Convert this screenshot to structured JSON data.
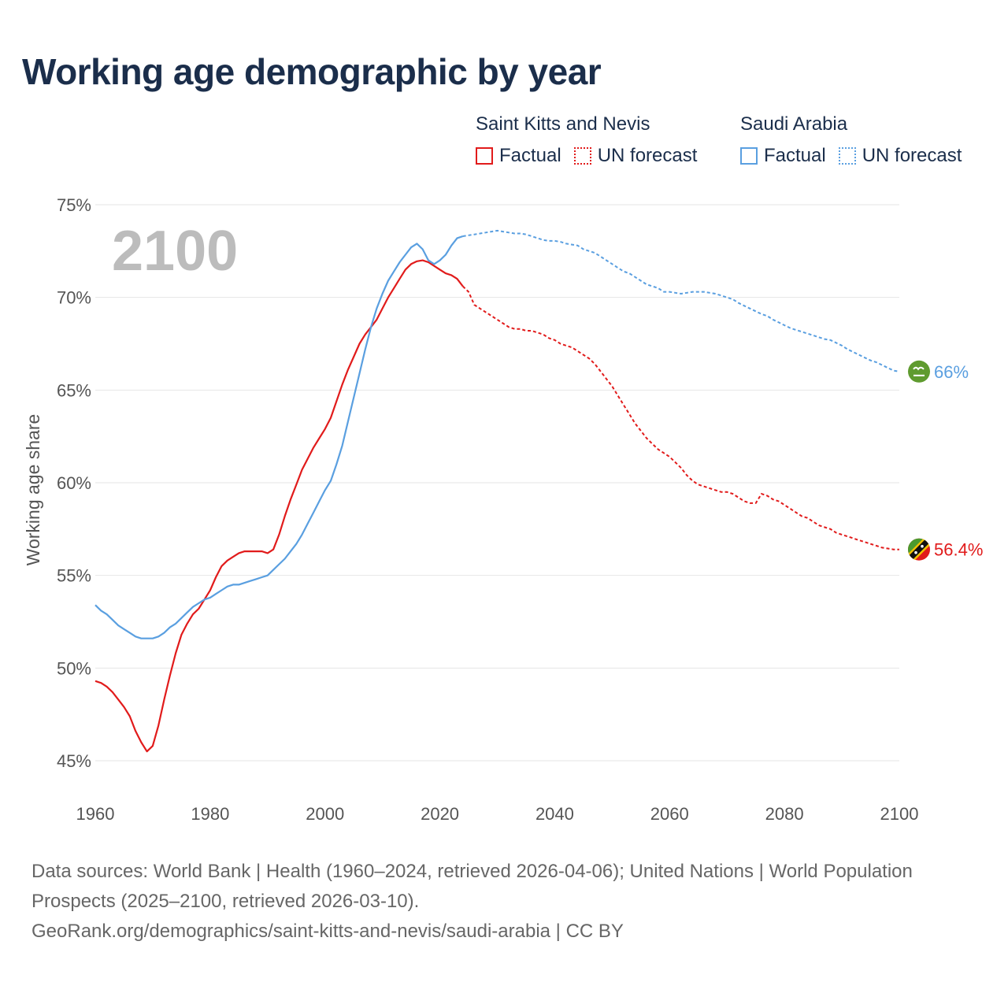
{
  "chart_data": {
    "type": "line",
    "title": "Working age demographic by year",
    "year_watermark": "2100",
    "ylabel": "Working age share",
    "xlabel": "",
    "xlim": [
      1960,
      2100
    ],
    "ylim": [
      45,
      75
    ],
    "x_ticks": [
      1960,
      1980,
      2000,
      2020,
      2040,
      2060,
      2080,
      2100
    ],
    "y_ticks": [
      45,
      50,
      55,
      60,
      65,
      70,
      75
    ],
    "y_tick_suffix": "%",
    "forecast_start": 2024,
    "series": [
      {
        "name": "Saint Kitts and Nevis",
        "color": "#e11b1b",
        "end_label": "56.4%",
        "flag_icon": "saint-kitts-and-nevis-flag-icon",
        "points": [
          [
            1960,
            49.3
          ],
          [
            1961,
            49.2
          ],
          [
            1962,
            49.0
          ],
          [
            1963,
            48.7
          ],
          [
            1964,
            48.3
          ],
          [
            1965,
            47.9
          ],
          [
            1966,
            47.4
          ],
          [
            1967,
            46.6
          ],
          [
            1968,
            46.0
          ],
          [
            1969,
            45.5
          ],
          [
            1970,
            45.8
          ],
          [
            1971,
            46.9
          ],
          [
            1972,
            48.3
          ],
          [
            1973,
            49.6
          ],
          [
            1974,
            50.8
          ],
          [
            1975,
            51.8
          ],
          [
            1976,
            52.4
          ],
          [
            1977,
            52.9
          ],
          [
            1978,
            53.2
          ],
          [
            1979,
            53.7
          ],
          [
            1980,
            54.2
          ],
          [
            1981,
            54.9
          ],
          [
            1982,
            55.5
          ],
          [
            1983,
            55.8
          ],
          [
            1984,
            56.0
          ],
          [
            1985,
            56.2
          ],
          [
            1986,
            56.3
          ],
          [
            1987,
            56.3
          ],
          [
            1988,
            56.3
          ],
          [
            1989,
            56.3
          ],
          [
            1990,
            56.2
          ],
          [
            1991,
            56.4
          ],
          [
            1992,
            57.2
          ],
          [
            1993,
            58.2
          ],
          [
            1994,
            59.1
          ],
          [
            1995,
            59.9
          ],
          [
            1996,
            60.7
          ],
          [
            1997,
            61.3
          ],
          [
            1998,
            61.9
          ],
          [
            1999,
            62.4
          ],
          [
            2000,
            62.9
          ],
          [
            2001,
            63.5
          ],
          [
            2002,
            64.4
          ],
          [
            2003,
            65.3
          ],
          [
            2004,
            66.1
          ],
          [
            2005,
            66.8
          ],
          [
            2006,
            67.5
          ],
          [
            2007,
            68.0
          ],
          [
            2008,
            68.4
          ],
          [
            2009,
            68.8
          ],
          [
            2010,
            69.4
          ],
          [
            2011,
            70.0
          ],
          [
            2012,
            70.5
          ],
          [
            2013,
            71.0
          ],
          [
            2014,
            71.5
          ],
          [
            2015,
            71.8
          ],
          [
            2016,
            71.95
          ],
          [
            2017,
            72.0
          ],
          [
            2018,
            71.9
          ],
          [
            2019,
            71.7
          ],
          [
            2020,
            71.5
          ],
          [
            2021,
            71.3
          ],
          [
            2022,
            71.2
          ],
          [
            2023,
            71.0
          ],
          [
            2024,
            70.6
          ],
          [
            2025,
            70.3
          ],
          [
            2026,
            69.6
          ],
          [
            2027,
            69.4
          ],
          [
            2028,
            69.2
          ],
          [
            2029,
            69.0
          ],
          [
            2030,
            68.8
          ],
          [
            2031,
            68.6
          ],
          [
            2032,
            68.4
          ],
          [
            2033,
            68.3
          ],
          [
            2034,
            68.3
          ],
          [
            2035,
            68.2
          ],
          [
            2036,
            68.2
          ],
          [
            2037,
            68.1
          ],
          [
            2038,
            68.0
          ],
          [
            2039,
            67.8
          ],
          [
            2040,
            67.7
          ],
          [
            2041,
            67.5
          ],
          [
            2042,
            67.4
          ],
          [
            2043,
            67.3
          ],
          [
            2044,
            67.1
          ],
          [
            2045,
            66.9
          ],
          [
            2046,
            66.7
          ],
          [
            2047,
            66.4
          ],
          [
            2048,
            66.0
          ],
          [
            2049,
            65.6
          ],
          [
            2050,
            65.2
          ],
          [
            2051,
            64.7
          ],
          [
            2052,
            64.2
          ],
          [
            2053,
            63.7
          ],
          [
            2054,
            63.2
          ],
          [
            2055,
            62.8
          ],
          [
            2056,
            62.4
          ],
          [
            2057,
            62.1
          ],
          [
            2058,
            61.8
          ],
          [
            2059,
            61.6
          ],
          [
            2060,
            61.4
          ],
          [
            2061,
            61.1
          ],
          [
            2062,
            60.8
          ],
          [
            2063,
            60.4
          ],
          [
            2064,
            60.1
          ],
          [
            2065,
            59.9
          ],
          [
            2066,
            59.8
          ],
          [
            2067,
            59.7
          ],
          [
            2068,
            59.6
          ],
          [
            2069,
            59.5
          ],
          [
            2070,
            59.5
          ],
          [
            2071,
            59.4
          ],
          [
            2072,
            59.2
          ],
          [
            2073,
            59.0
          ],
          [
            2074,
            58.9
          ],
          [
            2075,
            58.9
          ],
          [
            2076,
            59.4
          ],
          [
            2077,
            59.3
          ],
          [
            2078,
            59.1
          ],
          [
            2079,
            59.0
          ],
          [
            2080,
            58.8
          ],
          [
            2081,
            58.6
          ],
          [
            2082,
            58.4
          ],
          [
            2083,
            58.2
          ],
          [
            2084,
            58.1
          ],
          [
            2085,
            57.9
          ],
          [
            2086,
            57.7
          ],
          [
            2087,
            57.6
          ],
          [
            2088,
            57.5
          ],
          [
            2089,
            57.3
          ],
          [
            2090,
            57.2
          ],
          [
            2091,
            57.1
          ],
          [
            2092,
            57.0
          ],
          [
            2093,
            56.9
          ],
          [
            2094,
            56.8
          ],
          [
            2095,
            56.7
          ],
          [
            2096,
            56.6
          ],
          [
            2097,
            56.5
          ],
          [
            2098,
            56.45
          ],
          [
            2099,
            56.4
          ],
          [
            2100,
            56.4
          ]
        ]
      },
      {
        "name": "Saudi Arabia",
        "color": "#5a9fe0",
        "end_label": "66%",
        "flag_icon": "saudi-arabia-flag-icon",
        "points": [
          [
            1960,
            53.4
          ],
          [
            1961,
            53.1
          ],
          [
            1962,
            52.9
          ],
          [
            1963,
            52.6
          ],
          [
            1964,
            52.3
          ],
          [
            1965,
            52.1
          ],
          [
            1966,
            51.9
          ],
          [
            1967,
            51.7
          ],
          [
            1968,
            51.6
          ],
          [
            1969,
            51.6
          ],
          [
            1970,
            51.6
          ],
          [
            1971,
            51.7
          ],
          [
            1972,
            51.9
          ],
          [
            1973,
            52.2
          ],
          [
            1974,
            52.4
          ],
          [
            1975,
            52.7
          ],
          [
            1976,
            53.0
          ],
          [
            1977,
            53.3
          ],
          [
            1978,
            53.5
          ],
          [
            1979,
            53.7
          ],
          [
            1980,
            53.8
          ],
          [
            1981,
            54.0
          ],
          [
            1982,
            54.2
          ],
          [
            1983,
            54.4
          ],
          [
            1984,
            54.5
          ],
          [
            1985,
            54.5
          ],
          [
            1986,
            54.6
          ],
          [
            1987,
            54.7
          ],
          [
            1988,
            54.8
          ],
          [
            1989,
            54.9
          ],
          [
            1990,
            55.0
          ],
          [
            1991,
            55.3
          ],
          [
            1992,
            55.6
          ],
          [
            1993,
            55.9
          ],
          [
            1994,
            56.3
          ],
          [
            1995,
            56.7
          ],
          [
            1996,
            57.2
          ],
          [
            1997,
            57.8
          ],
          [
            1998,
            58.4
          ],
          [
            1999,
            59.0
          ],
          [
            2000,
            59.6
          ],
          [
            2001,
            60.1
          ],
          [
            2002,
            61.0
          ],
          [
            2003,
            62.0
          ],
          [
            2004,
            63.3
          ],
          [
            2005,
            64.6
          ],
          [
            2006,
            65.9
          ],
          [
            2007,
            67.2
          ],
          [
            2008,
            68.4
          ],
          [
            2009,
            69.4
          ],
          [
            2010,
            70.2
          ],
          [
            2011,
            70.9
          ],
          [
            2012,
            71.4
          ],
          [
            2013,
            71.9
          ],
          [
            2014,
            72.3
          ],
          [
            2015,
            72.7
          ],
          [
            2016,
            72.9
          ],
          [
            2017,
            72.6
          ],
          [
            2018,
            72.0
          ],
          [
            2019,
            71.8
          ],
          [
            2020,
            72.0
          ],
          [
            2021,
            72.3
          ],
          [
            2022,
            72.8
          ],
          [
            2023,
            73.2
          ],
          [
            2024,
            73.3
          ],
          [
            2025,
            73.35
          ],
          [
            2026,
            73.4
          ],
          [
            2027,
            73.45
          ],
          [
            2028,
            73.5
          ],
          [
            2029,
            73.55
          ],
          [
            2030,
            73.6
          ],
          [
            2031,
            73.55
          ],
          [
            2032,
            73.5
          ],
          [
            2033,
            73.45
          ],
          [
            2034,
            73.45
          ],
          [
            2035,
            73.4
          ],
          [
            2036,
            73.3
          ],
          [
            2037,
            73.2
          ],
          [
            2038,
            73.1
          ],
          [
            2039,
            73.05
          ],
          [
            2040,
            73.05
          ],
          [
            2041,
            73.0
          ],
          [
            2042,
            72.9
          ],
          [
            2043,
            72.85
          ],
          [
            2044,
            72.8
          ],
          [
            2045,
            72.6
          ],
          [
            2046,
            72.5
          ],
          [
            2047,
            72.4
          ],
          [
            2048,
            72.2
          ],
          [
            2049,
            72.0
          ],
          [
            2050,
            71.8
          ],
          [
            2051,
            71.6
          ],
          [
            2052,
            71.4
          ],
          [
            2053,
            71.3
          ],
          [
            2054,
            71.1
          ],
          [
            2055,
            70.9
          ],
          [
            2056,
            70.7
          ],
          [
            2057,
            70.6
          ],
          [
            2058,
            70.5
          ],
          [
            2059,
            70.3
          ],
          [
            2060,
            70.3
          ],
          [
            2061,
            70.25
          ],
          [
            2062,
            70.2
          ],
          [
            2063,
            70.25
          ],
          [
            2064,
            70.3
          ],
          [
            2065,
            70.3
          ],
          [
            2066,
            70.3
          ],
          [
            2067,
            70.25
          ],
          [
            2068,
            70.2
          ],
          [
            2069,
            70.1
          ],
          [
            2070,
            70.0
          ],
          [
            2071,
            69.9
          ],
          [
            2072,
            69.7
          ],
          [
            2073,
            69.55
          ],
          [
            2074,
            69.4
          ],
          [
            2075,
            69.25
          ],
          [
            2076,
            69.1
          ],
          [
            2077,
            69.0
          ],
          [
            2078,
            68.8
          ],
          [
            2079,
            68.65
          ],
          [
            2080,
            68.5
          ],
          [
            2081,
            68.35
          ],
          [
            2082,
            68.25
          ],
          [
            2083,
            68.15
          ],
          [
            2084,
            68.05
          ],
          [
            2085,
            67.95
          ],
          [
            2086,
            67.85
          ],
          [
            2087,
            67.75
          ],
          [
            2088,
            67.7
          ],
          [
            2089,
            67.55
          ],
          [
            2090,
            67.4
          ],
          [
            2091,
            67.2
          ],
          [
            2092,
            67.05
          ],
          [
            2093,
            66.9
          ],
          [
            2094,
            66.75
          ],
          [
            2095,
            66.6
          ],
          [
            2096,
            66.5
          ],
          [
            2097,
            66.35
          ],
          [
            2098,
            66.2
          ],
          [
            2099,
            66.05
          ],
          [
            2100,
            66.0
          ]
        ]
      }
    ]
  },
  "legend": {
    "groups": [
      {
        "country": "Saint Kitts and Nevis",
        "color": "#e11b1b",
        "factual_label": "Factual",
        "forecast_label": "UN forecast"
      },
      {
        "country": "Saudi Arabia",
        "color": "#5a9fe0",
        "factual_label": "Factual",
        "forecast_label": "UN forecast"
      }
    ]
  },
  "footer": {
    "sources": "Data sources: World Bank | Health (1960–2024, retrieved 2026-04-06); United Nations | World Population Prospects (2025–2100, retrieved 2026-03-10).",
    "credit": "GeoRank.org/demographics/saint-kitts-and-nevis/saudi-arabia | CC BY"
  }
}
